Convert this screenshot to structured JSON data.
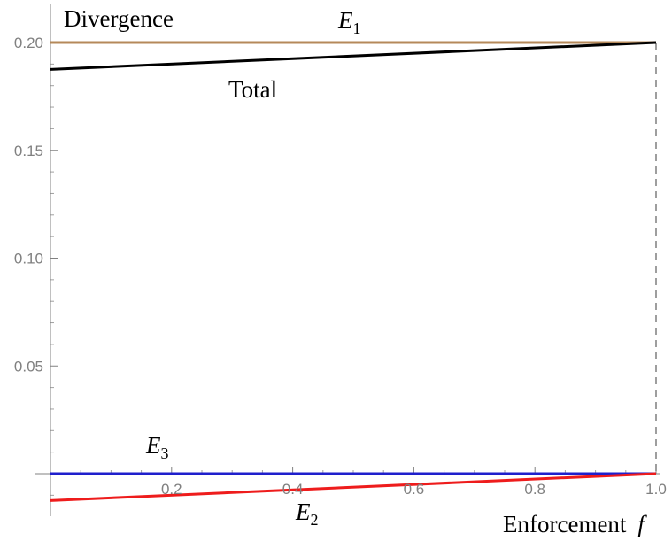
{
  "chart_data": {
    "type": "line",
    "ylabel": "Divergence",
    "xlabel": "Enforcement",
    "xlabel_var": "f",
    "xlim": [
      0,
      1.0
    ],
    "ylim": [
      -0.014,
      0.208
    ],
    "x_ticks": [
      0.2,
      0.4,
      0.6,
      0.8,
      1.0
    ],
    "x_tick_labels": [
      "0.2",
      "0.4",
      "0.6",
      "0.8",
      "1.0"
    ],
    "y_ticks": [
      0.05,
      0.1,
      0.15,
      0.2
    ],
    "y_tick_labels": [
      "0.05",
      "0.10",
      "0.15",
      "0.20"
    ],
    "grid": false,
    "reference_line": {
      "x": 1.0,
      "style": "dashed",
      "color": "#7f7f7f"
    },
    "series": [
      {
        "label_main": "E",
        "label_sub": "1",
        "color": "#b5895a",
        "x": [
          0,
          1.0
        ],
        "y": [
          0.2,
          0.2
        ]
      },
      {
        "label_main": "Total",
        "label_sub": "",
        "color": "#000000",
        "x": [
          0,
          1.0
        ],
        "y": [
          0.1875,
          0.2
        ]
      },
      {
        "label_main": "E",
        "label_sub": "3",
        "color": "#1f1fcc",
        "x": [
          0,
          1.0
        ],
        "y": [
          0.0,
          0.0
        ]
      },
      {
        "label_main": "E",
        "label_sub": "2",
        "color": "#ee1c1c",
        "x": [
          0,
          1.0
        ],
        "y": [
          -0.0125,
          0.0
        ]
      }
    ]
  }
}
